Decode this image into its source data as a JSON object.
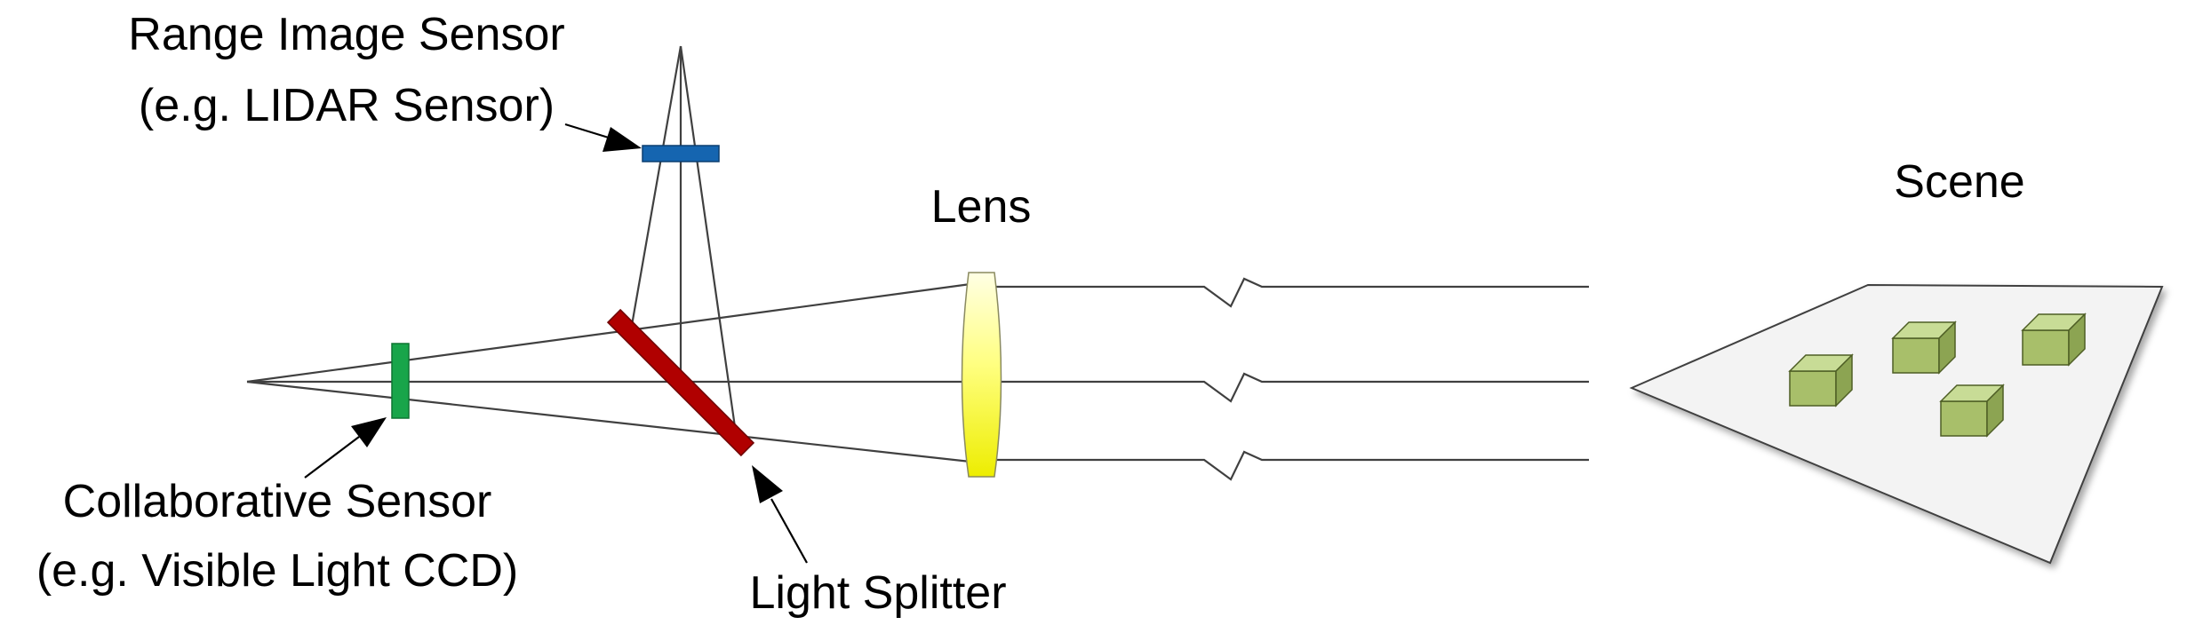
{
  "labels": {
    "range_sensor_line1": "Range Image Sensor",
    "range_sensor_line2": "(e.g. LIDAR Sensor)",
    "lens": "Lens",
    "scene": "Scene",
    "collab_sensor_line1": "Collaborative Sensor",
    "collab_sensor_line2": "(e.g. Visible Light CCD)",
    "light_splitter": "Light Splitter"
  },
  "colors": {
    "range_sensor": "#1565b0",
    "collab_sensor": "#18a54a",
    "splitter": "#b00000",
    "lens_top": "#ffffd6",
    "lens_bottom": "#f2f200",
    "plane": "#f4f4f4",
    "cube_front": "#a8bf6a",
    "cube_top": "#c8dc96",
    "cube_side": "#8ca452"
  }
}
